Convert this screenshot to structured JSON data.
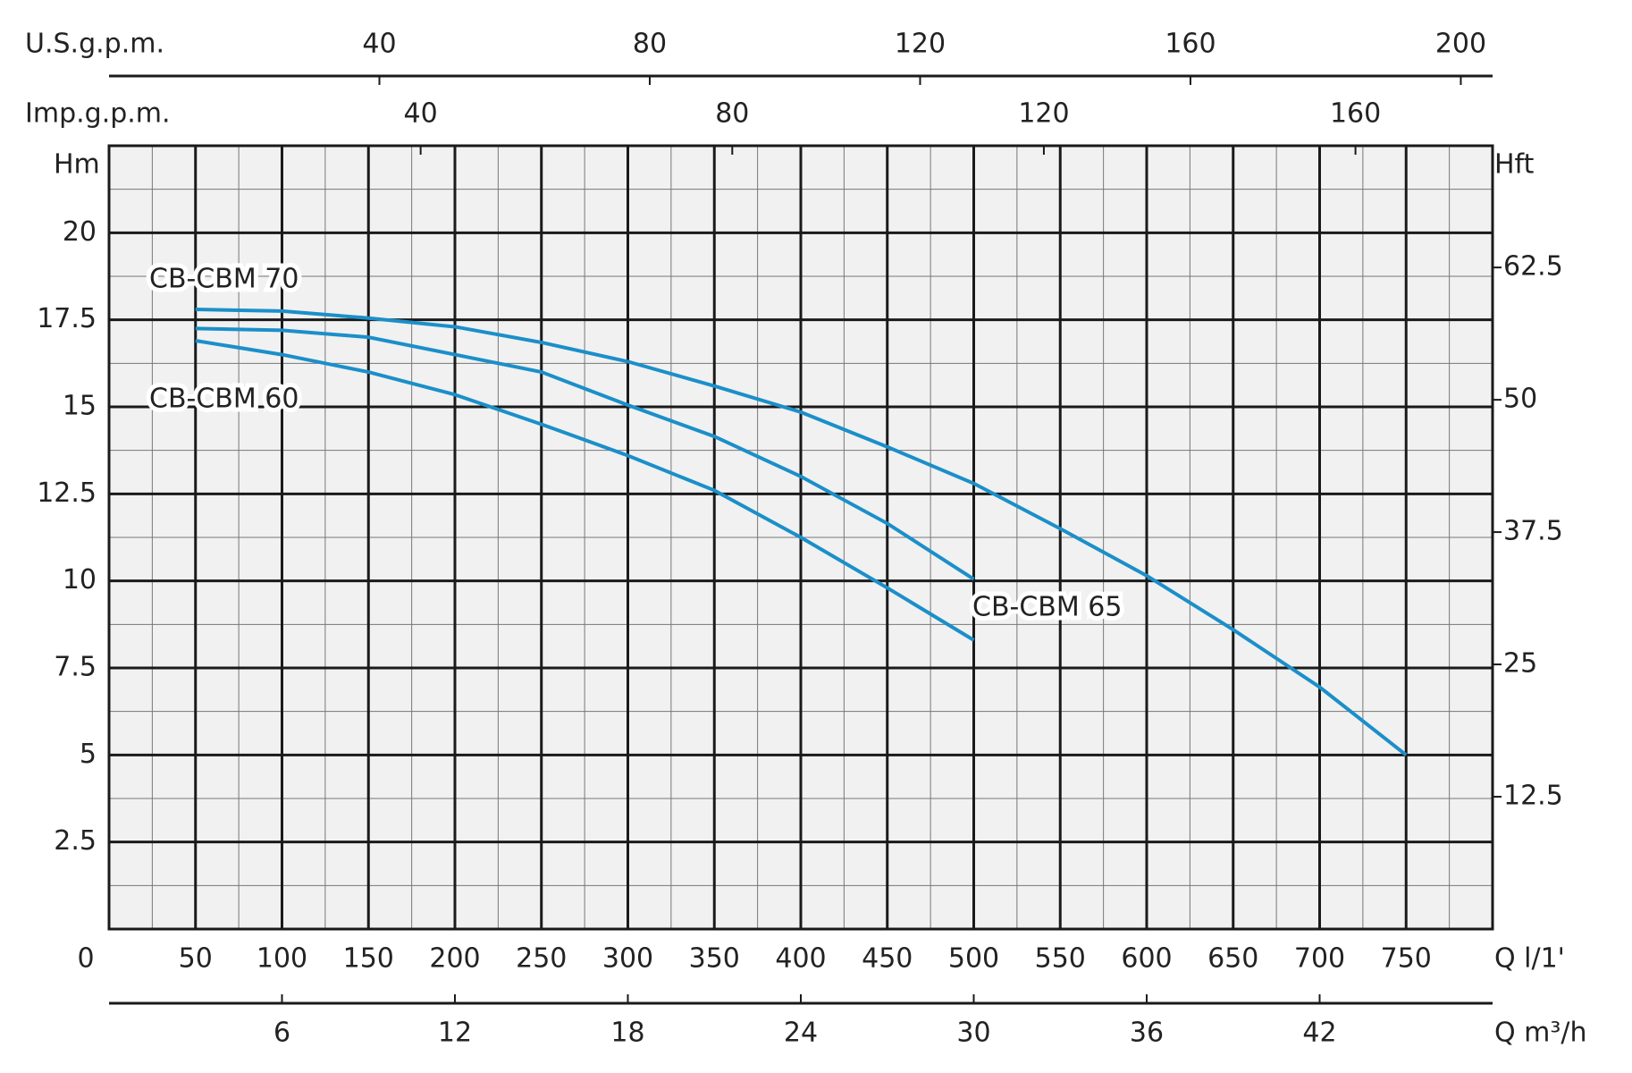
{
  "chart_data": {
    "type": "line",
    "xlabel": "Q l/1'",
    "ylabel": "Hm",
    "y2label": "Hft",
    "xlim": [
      0,
      800
    ],
    "xticks": [
      0,
      50,
      100,
      150,
      200,
      250,
      300,
      350,
      400,
      450,
      500,
      550,
      600,
      650,
      700,
      750
    ],
    "ylim": [
      0,
      22.5
    ],
    "yticks": [
      2.5,
      5,
      7.5,
      10,
      12.5,
      15,
      17.5,
      20
    ],
    "y2lim": [
      0,
      74
    ],
    "y2ticks": [
      12.5,
      25,
      37.5,
      50,
      62.5
    ],
    "grid": true,
    "top_axes": [
      {
        "label": "U.S.g.p.m.",
        "lim": [
          0,
          204.7
        ],
        "ticks": [
          40,
          80,
          120,
          160,
          200
        ]
      },
      {
        "label": "Imp.g.p.m.",
        "lim": [
          0,
          177.6
        ],
        "ticks": [
          40,
          80,
          120,
          160
        ]
      }
    ],
    "bottom_axis": {
      "label": "Q m³/h",
      "lim": [
        0,
        48
      ],
      "ticks": [
        6,
        12,
        18,
        24,
        30,
        36,
        42
      ]
    },
    "series": [
      {
        "name": "CB-CBM 70",
        "color": "#1b8fc9",
        "x": [
          50,
          100,
          150,
          200,
          250,
          300,
          350,
          400,
          450,
          500,
          550,
          600,
          650,
          700,
          750
        ],
        "values": [
          17.8,
          17.75,
          17.55,
          17.3,
          16.85,
          16.3,
          15.6,
          14.85,
          13.85,
          12.8,
          11.5,
          10.15,
          8.6,
          6.95,
          5.0
        ]
      },
      {
        "name": "CB-CBM 65",
        "color": "#1b8fc9",
        "x": [
          50,
          100,
          150,
          200,
          250,
          300,
          350,
          400,
          450,
          500
        ],
        "values": [
          17.25,
          17.2,
          17.0,
          16.5,
          16.0,
          15.05,
          14.15,
          13.0,
          11.65,
          10.05
        ]
      },
      {
        "name": "CB-CBM 60",
        "color": "#1b8fc9",
        "x": [
          50,
          100,
          150,
          200,
          250,
          300,
          350,
          400,
          450,
          500
        ],
        "values": [
          16.9,
          16.5,
          16.0,
          15.35,
          14.5,
          13.6,
          12.6,
          11.25,
          9.8,
          8.3
        ]
      }
    ]
  }
}
